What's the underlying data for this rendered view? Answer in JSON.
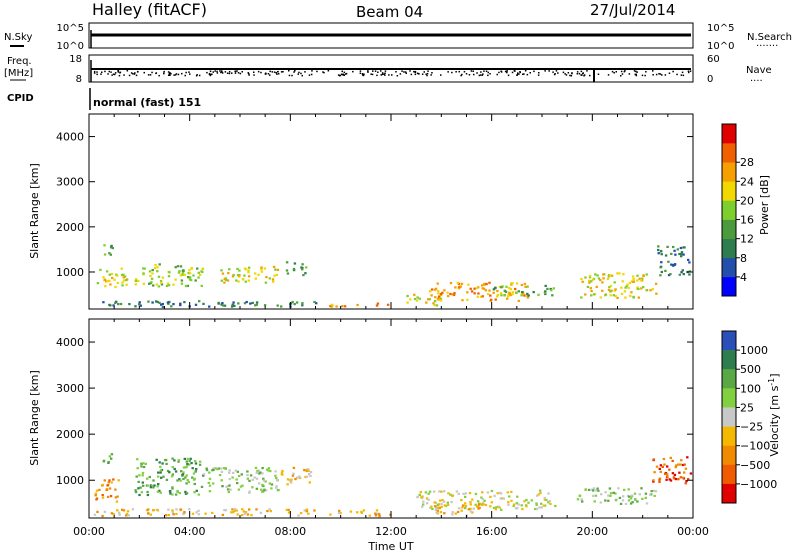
{
  "header": {
    "station": "Halley (fitACF)",
    "beam": "Beam 04",
    "date": "27/Jul/2014"
  },
  "strips": {
    "nsky_label": "N.Sky",
    "nsky_ticks": [
      "10^5",
      "10^0"
    ],
    "nsearch_label": "N.Search",
    "nsearch_ticks": [
      "10^5",
      "10^0"
    ],
    "freq_label": "Freq.",
    "freq_unit": "[MHz]",
    "freq_ticks": [
      "18",
      "8"
    ],
    "nave_label": "Nave",
    "nave_ticks": [
      "60",
      "0"
    ],
    "cpid_label": "CPID",
    "cpid_value": "normal (fast) 151"
  },
  "chart_data": [
    {
      "type": "heatmap",
      "name": "power",
      "ylabel": "Slant Range [km]",
      "ylim": [
        180,
        4500
      ],
      "yticks": [
        1000,
        2000,
        3000,
        4000
      ],
      "xlim": [
        0,
        24
      ],
      "xticks": [
        "00:00",
        "04:00",
        "08:00",
        "12:00",
        "16:00",
        "20:00",
        "00:00"
      ],
      "colorbar": {
        "label": "Power [dB]",
        "ticks": [
          "4",
          "8",
          "12",
          "16",
          "20",
          "24",
          "28"
        ],
        "colors": [
          "#0000ff",
          "#234faa",
          "#2e7d4f",
          "#4b9a3c",
          "#7ccf2d",
          "#f0d800",
          "#f5a000",
          "#f06000",
          "#e00000"
        ]
      },
      "patches": [
        {
          "t0": 0.5,
          "t1": 0.9,
          "r0": 1350,
          "r1": 1650,
          "level": 3
        },
        {
          "t0": 0.3,
          "t1": 1.5,
          "r0": 650,
          "r1": 1100,
          "level": 5
        },
        {
          "t0": 1.8,
          "t1": 4.5,
          "r0": 700,
          "r1": 1200,
          "level": 4
        },
        {
          "t0": 5.2,
          "t1": 7.5,
          "r0": 780,
          "r1": 1150,
          "level": 5
        },
        {
          "t0": 7.8,
          "t1": 8.6,
          "r0": 950,
          "r1": 1250,
          "level": 3
        },
        {
          "t0": 0.0,
          "t1": 9.0,
          "r0": 180,
          "r1": 380,
          "level": 2
        },
        {
          "t0": 9.5,
          "t1": 12.0,
          "r0": 180,
          "r1": 330,
          "level": 6
        },
        {
          "t0": 12.5,
          "t1": 14.0,
          "r0": 280,
          "r1": 520,
          "level": 5
        },
        {
          "t0": 13.5,
          "t1": 17.5,
          "r0": 380,
          "r1": 800,
          "level": 6
        },
        {
          "t0": 16.0,
          "t1": 18.5,
          "r0": 500,
          "r1": 720,
          "level": 3
        },
        {
          "t0": 19.5,
          "t1": 22.5,
          "r0": 450,
          "r1": 1000,
          "level": 5
        },
        {
          "t0": 22.5,
          "t1": 24.0,
          "r0": 950,
          "r1": 1600,
          "level": 2
        }
      ]
    },
    {
      "type": "heatmap",
      "name": "velocity",
      "ylabel": "Slant Range [km]",
      "xlabel": "Time UT",
      "ylim": [
        180,
        4500
      ],
      "yticks": [
        1000,
        2000,
        3000,
        4000
      ],
      "xlim": [
        0,
        24
      ],
      "xticks": [
        "00:00",
        "04:00",
        "08:00",
        "12:00",
        "16:00",
        "20:00",
        "00:00"
      ],
      "colorbar": {
        "label": "Velocity [m s^-1]",
        "ticks": [
          "1000",
          "500",
          "100",
          "25",
          "-25",
          "-100",
          "-500",
          "-1000"
        ],
        "colors": [
          "#2b4fb8",
          "#2e7d4f",
          "#5aa845",
          "#80d040",
          "#c8c8c8",
          "#f5b800",
          "#f08a00",
          "#f05a00",
          "#e00000"
        ]
      },
      "patches": [
        {
          "t0": 0.2,
          "t1": 1.2,
          "r0": 550,
          "r1": 1050,
          "level": 6
        },
        {
          "t0": 0.5,
          "t1": 0.9,
          "r0": 1350,
          "r1": 1650,
          "level": 2
        },
        {
          "t0": 1.8,
          "t1": 4.5,
          "r0": 700,
          "r1": 1500,
          "level": 2
        },
        {
          "t0": 4.5,
          "t1": 7.5,
          "r0": 750,
          "r1": 1300,
          "level": 3
        },
        {
          "t0": 7.5,
          "t1": 8.8,
          "r0": 900,
          "r1": 1300,
          "level": 5
        },
        {
          "t0": 0.0,
          "t1": 9.0,
          "r0": 180,
          "r1": 400,
          "level": 5
        },
        {
          "t0": 9.5,
          "t1": 12.0,
          "r0": 180,
          "r1": 380,
          "level": 5
        },
        {
          "t0": 13.0,
          "t1": 18.5,
          "r0": 380,
          "r1": 800,
          "level": 4
        },
        {
          "t0": 13.5,
          "t1": 15.5,
          "r0": 250,
          "r1": 550,
          "level": 5
        },
        {
          "t0": 19.3,
          "t1": 22.5,
          "r0": 500,
          "r1": 850,
          "level": 3
        },
        {
          "t0": 22.3,
          "t1": 24.0,
          "r0": 950,
          "r1": 1550,
          "level": 7
        }
      ]
    }
  ]
}
